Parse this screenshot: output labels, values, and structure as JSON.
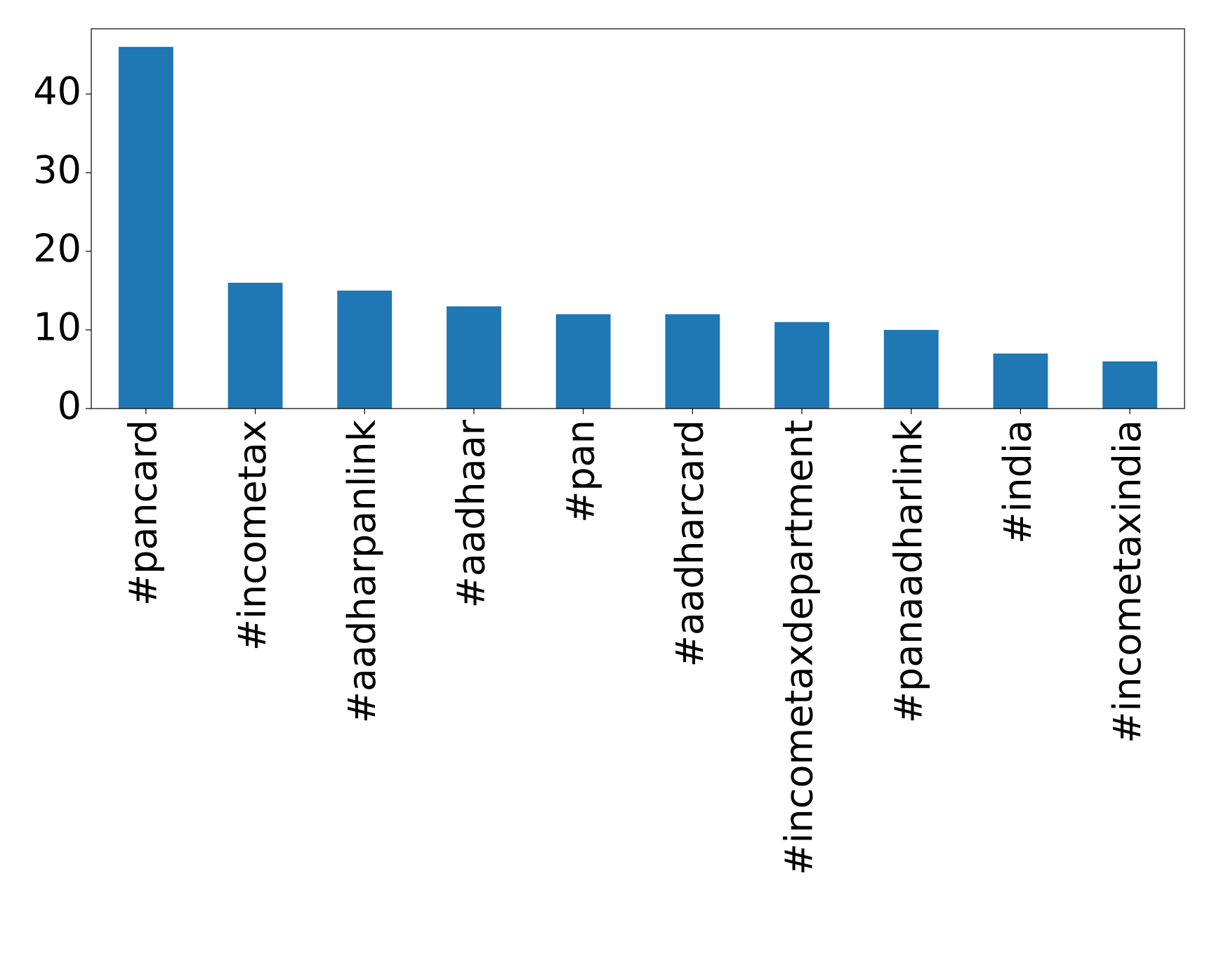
{
  "chart_data": {
    "type": "bar",
    "categories": [
      "#pancard",
      "#incometax",
      "#aadharpanlink",
      "#aadhaar",
      "#pan",
      "#aadharcard",
      "#incometaxdepartment",
      "#panaadharlink",
      "#india",
      "#incometaxindia"
    ],
    "values": [
      46,
      16,
      15,
      13,
      12,
      12,
      11,
      10,
      7,
      6
    ],
    "color": "#1f77b4",
    "ylim": [
      0,
      48.3
    ],
    "yticks": [
      0,
      10,
      20,
      30,
      40
    ],
    "grid": false
  }
}
